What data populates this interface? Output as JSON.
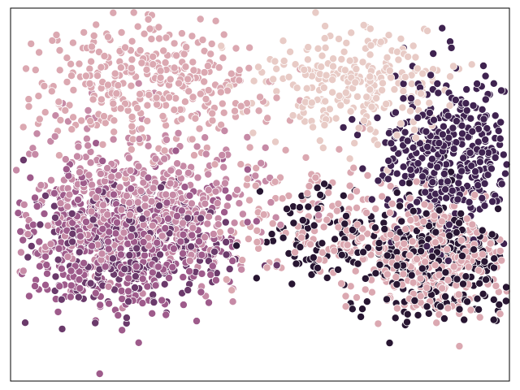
{
  "chart_data": {
    "type": "scatter",
    "title": "",
    "xlabel": "",
    "ylabel": "",
    "xlim": [
      0,
      100
    ],
    "ylim": [
      0,
      100
    ],
    "grid": false,
    "legend": null,
    "ticks_visible": false,
    "palette": [
      "#e8cbc6",
      "#dba8b1",
      "#c68aa6",
      "#9e5b8b",
      "#6b3a6b",
      "#3f2350",
      "#281632"
    ],
    "clusters": [
      {
        "color_index": 1,
        "center": [
          26,
          80
        ],
        "spread": [
          12,
          9
        ],
        "count": 360
      },
      {
        "color_index": 0,
        "center": [
          70,
          80
        ],
        "spread": [
          9,
          7
        ],
        "count": 260
      },
      {
        "color_index": 2,
        "center": [
          26,
          48
        ],
        "spread": [
          12,
          10
        ],
        "count": 520
      },
      {
        "color_index": 3,
        "center": [
          22,
          38
        ],
        "spread": [
          11,
          9
        ],
        "count": 520
      },
      {
        "color_index": 4,
        "center": [
          25,
          36
        ],
        "spread": [
          10,
          8
        ],
        "count": 280
      },
      {
        "color_index": 5,
        "center": [
          88,
          60
        ],
        "spread": [
          7,
          11
        ],
        "count": 420
      },
      {
        "color_index": 6,
        "center": [
          86,
          33
        ],
        "spread": [
          9,
          8
        ],
        "count": 300
      },
      {
        "color_index": 1,
        "center": [
          85,
          34
        ],
        "spread": [
          9,
          8
        ],
        "count": 330
      },
      {
        "color_index": 6,
        "center": [
          62,
          40
        ],
        "spread": [
          8,
          7
        ],
        "count": 90
      },
      {
        "color_index": 1,
        "center": [
          62,
          45
        ],
        "spread": [
          10,
          10
        ],
        "count": 140
      }
    ]
  }
}
